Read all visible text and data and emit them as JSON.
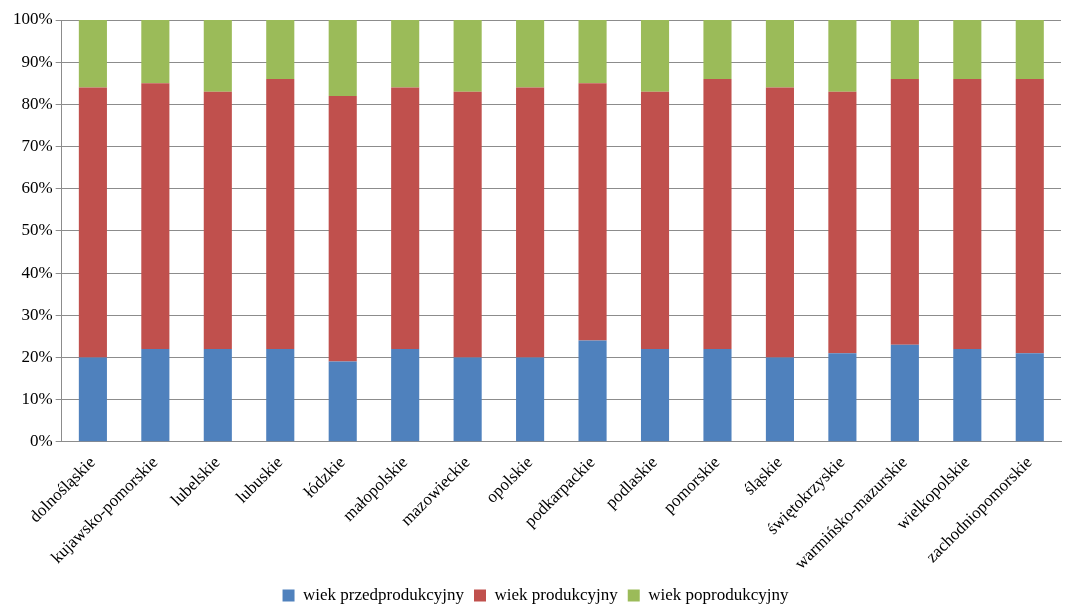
{
  "chart_data": {
    "type": "bar",
    "stacked": true,
    "categories": [
      "dolnośląskie",
      "kujawsko-pomorskie",
      "lubelskie",
      "lubuskie",
      "łódzkie",
      "małopolskie",
      "mazowieckie",
      "opolskie",
      "podkarpackie",
      "podlaskie",
      "pomorskie",
      "śląskie",
      "świętokrzyskie",
      "warmińsko-mazurskie",
      "wielkopolskie",
      "zachodniopomorskie"
    ],
    "series": [
      {
        "name": "wiek przedprodukcyjny",
        "color": "#4f81bd",
        "values": [
          20,
          22,
          22,
          22,
          19,
          22,
          20,
          20,
          24,
          22,
          22,
          20,
          21,
          23,
          22,
          21
        ]
      },
      {
        "name": "wiek produkcyjny",
        "color": "#c0504d",
        "values": [
          64,
          63,
          61,
          64,
          63,
          62,
          63,
          64,
          61,
          61,
          64,
          64,
          62,
          63,
          64,
          65
        ]
      },
      {
        "name": "wiek poprodukcyjny",
        "color": "#9bbb59",
        "values": [
          16,
          15,
          17,
          14,
          18,
          16,
          17,
          16,
          15,
          17,
          14,
          16,
          17,
          14,
          14,
          14
        ]
      }
    ],
    "ylim": [
      0,
      100
    ],
    "yticks": [
      {
        "value": 0,
        "label": "0%"
      },
      {
        "value": 10,
        "label": "10%"
      },
      {
        "value": 20,
        "label": "20%"
      },
      {
        "value": 30,
        "label": "30%"
      },
      {
        "value": 40,
        "label": "40%"
      },
      {
        "value": 50,
        "label": "50%"
      },
      {
        "value": 60,
        "label": "60%"
      },
      {
        "value": 70,
        "label": "70%"
      },
      {
        "value": 80,
        "label": "80%"
      },
      {
        "value": 90,
        "label": "90%"
      },
      {
        "value": 100,
        "label": "100%"
      }
    ],
    "grid": "y",
    "legend": "bottom"
  }
}
